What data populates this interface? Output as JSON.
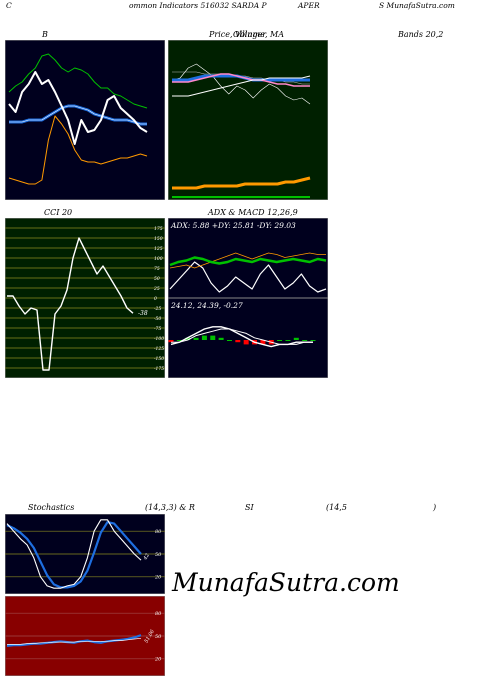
{
  "header": {
    "p1": "C",
    "p2": "ommon  Indicators 516032  SARDA P",
    "p3": "APER",
    "p4": "S MunafaSutra.com"
  },
  "titles": {
    "bb": "B",
    "price": "Price,  Volume,  MA",
    "price_overlap": "Ollinger",
    "bands": "Bands 20,2",
    "cci": "CCI 20",
    "adx": "ADX  & MACD 12,26,9",
    "stoch": "Stochastics",
    "stoch_params": "(14,3,3) & R",
    "rsi": "SI",
    "rsi_params": "(14,5",
    "rsi_close": ")"
  },
  "watermark": "MunafaSutra.com",
  "colors": {
    "panel_bg": "#00001e",
    "price_bg": "#002000",
    "rsi_bg": "#880000",
    "green": "#00c000",
    "blue": "#1e6ee0",
    "orange": "#ff9900",
    "white": "#ffffff",
    "pink": "#ff88cc",
    "red": "#ff0000",
    "grid_olive": "#8a8a20"
  },
  "chart_data": [
    {
      "type": "line",
      "name": "bollinger-bands",
      "series": [
        {
          "role": "upper",
          "values": [
            64,
            67,
            69,
            73,
            76,
            82,
            83,
            80,
            76,
            74,
            76,
            75,
            73,
            69,
            66,
            66,
            63,
            62,
            60,
            58,
            57,
            56
          ]
        },
        {
          "role": "middle",
          "values": [
            49,
            49,
            49,
            50,
            50,
            50,
            52,
            54,
            56,
            57,
            57,
            56,
            55,
            53,
            52,
            51,
            50,
            50,
            50,
            49,
            48,
            48
          ]
        },
        {
          "role": "lower",
          "values": [
            21,
            20,
            19,
            18,
            18,
            20,
            40,
            52,
            48,
            43,
            35,
            30,
            29,
            29,
            28,
            29,
            30,
            31,
            31,
            32,
            33,
            32
          ]
        },
        {
          "role": "price",
          "values": [
            58,
            54,
            64,
            68,
            74,
            68,
            70,
            64,
            57,
            50,
            38,
            50,
            44,
            45,
            50,
            60,
            62,
            56,
            53,
            50,
            46,
            44
          ]
        }
      ]
    },
    {
      "type": "line",
      "name": "price-volume-ma",
      "series": [
        {
          "role": "price",
          "values": [
            70,
            71,
            76,
            78,
            75,
            72,
            67,
            63,
            67,
            65,
            61,
            65,
            68,
            66,
            62,
            60,
            61,
            58
          ]
        },
        {
          "role": "ma-a",
          "values": [
            74,
            74,
            74,
            74,
            73,
            73,
            73,
            72,
            72,
            72,
            71,
            71,
            70,
            70,
            69,
            69,
            68,
            68
          ]
        },
        {
          "role": "ma-b",
          "values": [
            70,
            70,
            70,
            71,
            72,
            72,
            72,
            72,
            72,
            71,
            70,
            70,
            70,
            70,
            70,
            70,
            70,
            70
          ]
        },
        {
          "role": "ma-c",
          "values": [
            69,
            69,
            69,
            70,
            71,
            72,
            73,
            73,
            72,
            71,
            70,
            70,
            69,
            68,
            68,
            67,
            67,
            67
          ]
        },
        {
          "role": "ma-d",
          "values": [
            62,
            62,
            62,
            63,
            64,
            65,
            66,
            67,
            68,
            69,
            70,
            70,
            71,
            71,
            71,
            71,
            71,
            72
          ]
        },
        {
          "role": "volume-line",
          "values": [
            16,
            16,
            16,
            16,
            17,
            17,
            17,
            17,
            17,
            18,
            18,
            18,
            18,
            18,
            19,
            19,
            20,
            21
          ]
        }
      ]
    },
    {
      "type": "line",
      "name": "cci",
      "y_ticks": [
        175,
        150,
        125,
        100,
        75,
        50,
        25,
        0,
        -25,
        -50,
        -75,
        -100,
        -125,
        -150,
        -175
      ],
      "last_label": "-38",
      "values": [
        5,
        5,
        -20,
        -40,
        -25,
        -30,
        -180,
        -180,
        -40,
        -20,
        20,
        100,
        150,
        120,
        90,
        60,
        80,
        55,
        30,
        5,
        -25,
        -38
      ]
    },
    {
      "type": "line",
      "name": "adx",
      "label": "ADX: 5.88  +DY: 25.81 -DY: 29.03",
      "series": [
        {
          "role": "adx",
          "values": [
            6,
            12,
            18,
            24,
            20,
            10,
            4,
            8,
            14,
            10,
            6,
            16,
            22,
            14,
            6,
            10,
            16,
            8,
            4,
            6
          ]
        },
        {
          "role": "plus-di",
          "values": [
            22,
            24,
            25,
            27,
            26,
            24,
            23,
            24,
            26,
            25,
            24,
            26,
            25,
            24,
            25,
            26,
            25,
            24,
            26,
            25
          ]
        },
        {
          "role": "minus-di",
          "values": [
            20,
            21,
            22,
            20,
            22,
            24,
            26,
            28,
            30,
            28,
            26,
            28,
            30,
            29,
            27,
            28,
            29,
            30,
            29,
            29
          ]
        }
      ]
    },
    {
      "type": "bar",
      "name": "macd",
      "label": "24.12,  24.39,  -0.27",
      "series": [
        {
          "role": "macd",
          "values": [
            -2,
            -1,
            1,
            3,
            5,
            6,
            6,
            5,
            3,
            1,
            -1,
            -2,
            -3,
            -2,
            -2,
            -1,
            -1,
            -1
          ]
        },
        {
          "role": "signal",
          "values": [
            -1,
            -1,
            0,
            2,
            3,
            4,
            5,
            5,
            4,
            3,
            1,
            0,
            -1,
            -2,
            -2,
            -2,
            -1,
            -1
          ]
        },
        {
          "role": "histogram",
          "values": [
            -1,
            0,
            1,
            1,
            2,
            2,
            1,
            0,
            -1,
            -2,
            -2,
            -2,
            -2,
            0,
            0,
            1,
            0,
            0
          ]
        }
      ]
    },
    {
      "type": "line",
      "name": "stochastics",
      "y_ticks": [
        80,
        50,
        20
      ],
      "last_label": "42",
      "series": [
        {
          "role": "k",
          "values": [
            90,
            80,
            70,
            62,
            45,
            20,
            8,
            5,
            5,
            8,
            10,
            20,
            45,
            80,
            95,
            95,
            80,
            70,
            60,
            50,
            42
          ]
        },
        {
          "role": "d",
          "values": [
            88,
            84,
            78,
            70,
            58,
            40,
            22,
            10,
            6,
            6,
            8,
            14,
            28,
            52,
            78,
            92,
            90,
            80,
            70,
            60,
            50
          ]
        }
      ]
    },
    {
      "type": "line",
      "name": "rsi",
      "y_ticks": [
        80,
        50,
        20
      ],
      "last_label": "51.06",
      "series": [
        {
          "role": "rsi",
          "values": [
            37,
            38,
            38,
            39,
            40,
            40,
            41,
            42,
            43,
            42,
            41,
            43,
            44,
            42,
            41,
            43,
            44,
            45,
            46,
            48,
            51
          ]
        },
        {
          "role": "signal",
          "values": [
            39,
            39,
            39,
            40,
            40,
            41,
            41,
            42,
            42,
            42,
            42,
            43,
            43,
            43,
            43,
            43,
            44,
            44,
            45,
            46,
            47
          ]
        }
      ]
    }
  ]
}
